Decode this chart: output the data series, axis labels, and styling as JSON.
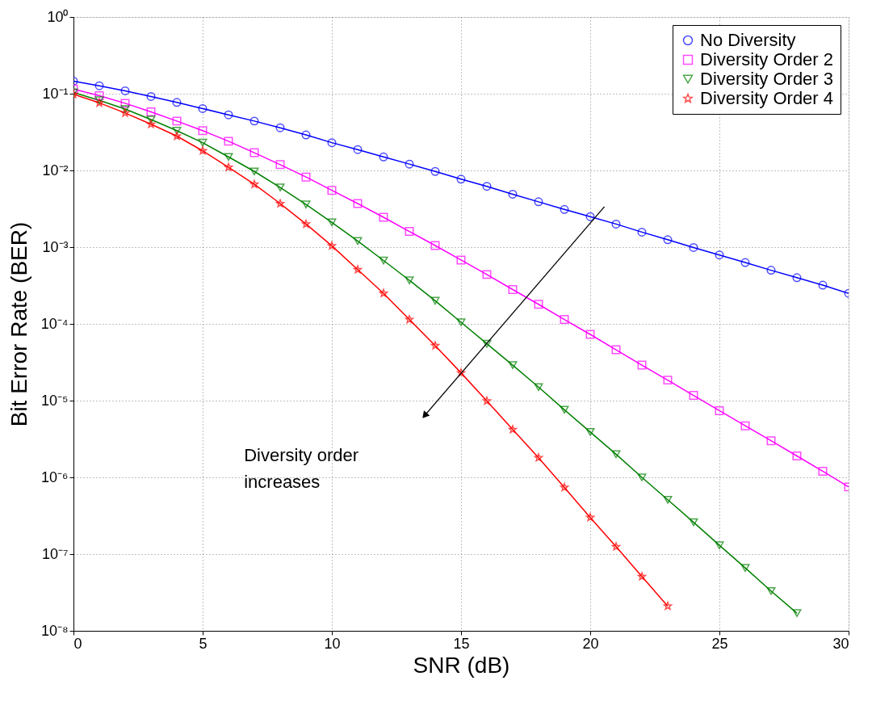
{
  "chart_data": {
    "type": "line",
    "xlabel": "SNR (dB)",
    "ylabel": "Bit Error Rate (BER)",
    "x": [
      0,
      1,
      2,
      3,
      4,
      5,
      6,
      7,
      8,
      9,
      10,
      11,
      12,
      13,
      14,
      15,
      16,
      17,
      18,
      19,
      20,
      21,
      22,
      23,
      24,
      25,
      26,
      27,
      28,
      29,
      30
    ],
    "series": [
      {
        "name": "No Diversity",
        "color": "#0000ff",
        "marker": "circle",
        "values": [
          0.146,
          0.127,
          0.109,
          0.092,
          0.077,
          0.064,
          0.053,
          0.044,
          0.036,
          0.029,
          0.023,
          0.0187,
          0.015,
          0.0121,
          0.0097,
          0.0077,
          0.0062,
          0.0049,
          0.0039,
          0.0031,
          0.0025,
          0.002,
          0.00157,
          0.00125,
          0.00099,
          0.00079,
          0.00063,
          0.0005,
          0.0004,
          0.00032,
          0.00025
        ]
      },
      {
        "name": "Diversity Order 2",
        "color": "#ff00ff",
        "marker": "square",
        "values": [
          0.115,
          0.094,
          0.075,
          0.058,
          0.044,
          0.033,
          0.024,
          0.017,
          0.0119,
          0.0082,
          0.0055,
          0.0037,
          0.00245,
          0.0016,
          0.00105,
          0.00068,
          0.00044,
          0.00028,
          0.00018,
          0.000114,
          7.3e-05,
          4.6e-05,
          2.9e-05,
          1.85e-05,
          1.17e-05,
          7.4e-06,
          4.7e-06,
          3e-06,
          1.9e-06,
          1.2e-06,
          7.5e-07
        ]
      },
      {
        "name": "Diversity Order 3",
        "color": "#008000",
        "marker": "triangle",
        "values": [
          0.104,
          0.082,
          0.063,
          0.046,
          0.033,
          0.023,
          0.015,
          0.0097,
          0.006,
          0.0036,
          0.0021,
          0.0012,
          0.00067,
          0.00037,
          0.0002,
          0.000105,
          5.5e-05,
          2.9e-05,
          1.5e-05,
          7.6e-06,
          3.9e-06,
          2e-06,
          1e-06,
          5.1e-07,
          2.6e-07,
          1.3e-07,
          6.6e-08,
          3.3e-08,
          1.7e-08,
          null,
          null
        ]
      },
      {
        "name": "Diversity Order 4",
        "color": "#ff0000",
        "marker": "star",
        "values": [
          0.098,
          0.076,
          0.056,
          0.04,
          0.028,
          0.018,
          0.011,
          0.0066,
          0.0037,
          0.002,
          0.00104,
          0.00051,
          0.00025,
          0.000114,
          5.2e-05,
          2.3e-05,
          9.9e-06,
          4.2e-06,
          1.8e-06,
          7.4e-07,
          3e-07,
          1.25e-07,
          5.1e-08,
          2.1e-08,
          null,
          null,
          null,
          null,
          null,
          null,
          null
        ]
      }
    ],
    "xlim": [
      0,
      30
    ],
    "xticks": [
      0,
      5,
      10,
      15,
      20,
      25,
      30
    ],
    "log": "y",
    "ylim": [
      1e-08,
      1
    ],
    "yticks": [
      {
        "value": 1e-08,
        "label": "10⁻⁸"
      },
      {
        "value": 1e-07,
        "label": "10⁻⁷"
      },
      {
        "value": 1e-06,
        "label": "10⁻⁶"
      },
      {
        "value": 1e-05,
        "label": "10⁻⁵"
      },
      {
        "value": 0.0001,
        "label": "10⁻⁴"
      },
      {
        "value": 0.001,
        "label": "10⁻³"
      },
      {
        "value": 0.01,
        "label": "10⁻²"
      },
      {
        "value": 0.1,
        "label": "10⁻¹"
      },
      {
        "value": 1,
        "label": "10⁰"
      }
    ],
    "annotations": [
      "Diversity order\nincreases"
    ],
    "grid": true,
    "legend": "top right",
    "line_style": "solid"
  }
}
